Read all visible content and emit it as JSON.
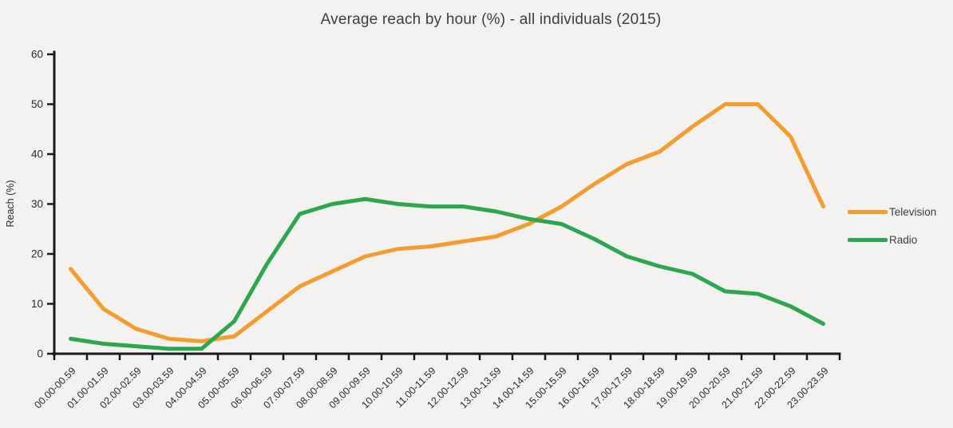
{
  "colors": {
    "background": "#f3f2f0",
    "axis": "#1a1a1a",
    "tick_text": "#2b2b2b",
    "title_text": "#3e3e40",
    "television": "#f59c30",
    "radio": "#2ea64e"
  },
  "chart_data": {
    "type": "line",
    "title": "Average reach by hour (%) - all individuals (2015)",
    "xlabel": "",
    "ylabel": "Reach (%)",
    "ylim": [
      0,
      60
    ],
    "y_ticks": [
      0,
      10,
      20,
      30,
      40,
      50,
      60
    ],
    "grid": false,
    "legend_position": "right",
    "categories": [
      "00.00-00.59",
      "01.00-01.59",
      "02.00-02.59",
      "03.00-03.59",
      "04.00-04.59",
      "05.00-05.59",
      "06.00-06.59",
      "07.00-07.59",
      "08.00-08.59",
      "09.00-09.59",
      "10.00-10.59",
      "11.00-11.59",
      "12.00-12.59",
      "13.00-13.59",
      "14.00-14.59",
      "15.00-15.59",
      "16.00-16.59",
      "17.00-17.59",
      "18.00-18.59",
      "19.00-19.59",
      "20.00-20.59",
      "21.00-21.59",
      "22.00-22.59",
      "23.00-23.59"
    ],
    "series": [
      {
        "name": "Television",
        "color": "#f59c30",
        "values": [
          17,
          9,
          5,
          3,
          2.5,
          3.5,
          8.5,
          13.5,
          16.5,
          19.5,
          21,
          21.5,
          22.5,
          23.5,
          26,
          29.5,
          34,
          38,
          40.5,
          45.5,
          50,
          50,
          43.5,
          29.5
        ]
      },
      {
        "name": "Radio",
        "color": "#2ea64e",
        "values": [
          3,
          2,
          1.5,
          1,
          1,
          6.5,
          18,
          28,
          30,
          31,
          30,
          29.5,
          29.5,
          28.5,
          27,
          26,
          23,
          19.5,
          17.5,
          16,
          12.5,
          12,
          9.5,
          6
        ]
      }
    ]
  }
}
